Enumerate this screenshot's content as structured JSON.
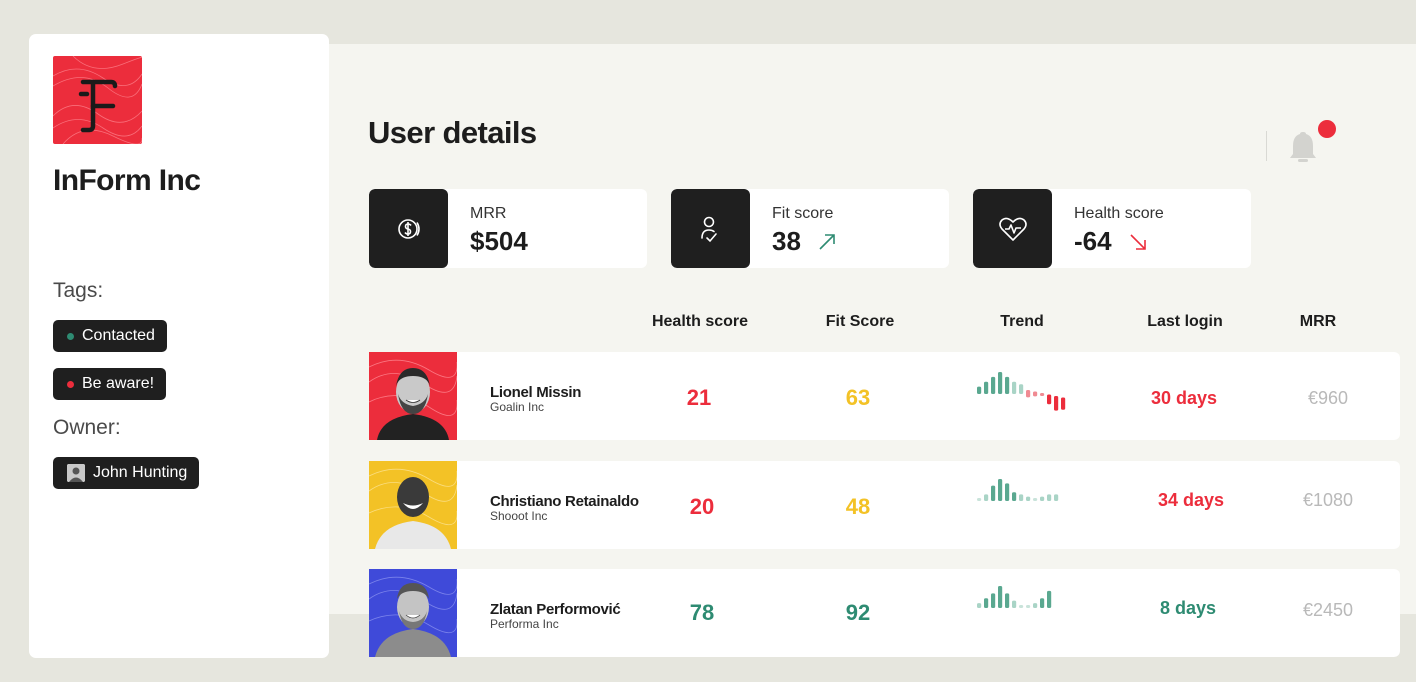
{
  "company": {
    "name": "InForm Inc"
  },
  "tags": {
    "label": "Tags:",
    "items": [
      {
        "label": "Contacted",
        "color": "#2e8b72"
      },
      {
        "label": "Be aware!",
        "color": "#ec2d3c"
      }
    ]
  },
  "owner": {
    "label": "Owner:",
    "name": "John Hunting"
  },
  "page": {
    "title": "User details"
  },
  "stats": [
    {
      "label": "MRR",
      "value": "$504",
      "icon": "dollar-coin-icon"
    },
    {
      "label": "Fit score",
      "value": "38",
      "trend": "up",
      "trend_color": "#2e8b72",
      "icon": "user-check-icon"
    },
    {
      "label": "Health score",
      "value": "-64",
      "trend": "down",
      "trend_color": "#ec2d3c",
      "icon": "heart-pulse-icon"
    }
  ],
  "table": {
    "headers": {
      "health": "Health score",
      "fit": "Fit Score",
      "trend": "Trend",
      "login": "Last login",
      "mrr": "MRR"
    },
    "rows": [
      {
        "name": "Lionel Missin",
        "company": "Goalin Inc",
        "health": "21",
        "health_color": "red",
        "fit": "63",
        "fit_color": "yellow",
        "login": "30 days",
        "login_color": "red",
        "mrr": "€960",
        "avatar_bg": "#ec2d3c",
        "trend": [
          3,
          5,
          7,
          9,
          7,
          5,
          4,
          3,
          2,
          1,
          4,
          6,
          5
        ]
      },
      {
        "name": "Christiano Retainaldo",
        "company": "Shooot Inc",
        "health": "20",
        "health_color": "red",
        "fit": "48",
        "fit_color": "yellow",
        "login": "34 days",
        "login_color": "red",
        "mrr": "€1080",
        "avatar_bg": "#f3c226",
        "trend": [
          1,
          3,
          7,
          10,
          8,
          4,
          3,
          2,
          1,
          2,
          3,
          3
        ]
      },
      {
        "name": "Zlatan Performović",
        "company": "Performa Inc",
        "health": "78",
        "health_color": "green",
        "fit": "92",
        "fit_color": "green",
        "login": "8 days",
        "login_color": "green",
        "mrr": "€2450",
        "avatar_bg": "#3f4ad9",
        "trend": [
          2,
          4,
          6,
          9,
          6,
          3,
          1,
          1,
          2,
          4,
          7
        ]
      }
    ]
  },
  "colors": {
    "accent_red": "#ec2d3c",
    "accent_yellow": "#f3c226",
    "accent_green": "#2e8b72",
    "dark": "#1f1f1f"
  }
}
